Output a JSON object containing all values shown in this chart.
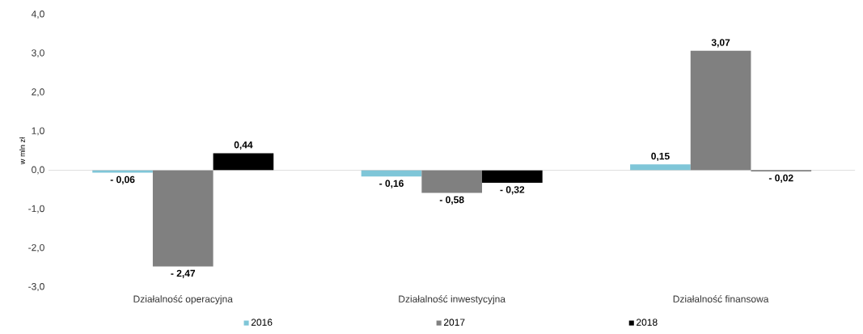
{
  "chart_data": {
    "type": "bar",
    "ylabel": "w mln zł",
    "categories": [
      "Działalność operacyjna",
      "Działalność inwestycyjna",
      "Działalność finansowa"
    ],
    "series": [
      {
        "name": "2016",
        "color": "#7fc6d8",
        "values": [
          -0.06,
          -0.16,
          0.15
        ],
        "value_labels": [
          "- 0,06",
          "- 0,16",
          "0,15"
        ]
      },
      {
        "name": "2017",
        "color": "#808080",
        "values": [
          -2.47,
          -0.58,
          3.07
        ],
        "value_labels": [
          "- 2,47",
          "- 0,58",
          "3,07"
        ]
      },
      {
        "name": "2018",
        "color": "#000000",
        "values": [
          0.44,
          -0.32,
          -0.02
        ],
        "value_labels": [
          "0,44",
          "- 0,32",
          "- 0,02"
        ]
      }
    ],
    "ylim": [
      -3,
      4
    ],
    "yticks": [
      {
        "value": -3,
        "label": "-3,0"
      },
      {
        "value": -2,
        "label": "-2,0"
      },
      {
        "value": -1,
        "label": "-1,0"
      },
      {
        "value": 0,
        "label": "0,0"
      },
      {
        "value": 1,
        "label": "1,0"
      },
      {
        "value": 2,
        "label": "2,0"
      },
      {
        "value": 3,
        "label": "3,0"
      },
      {
        "value": 4,
        "label": "4,0"
      }
    ],
    "legend": "bottom"
  }
}
